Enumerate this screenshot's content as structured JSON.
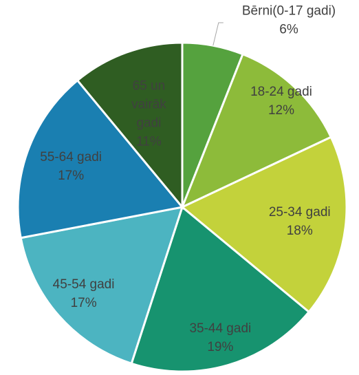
{
  "chart_data": {
    "type": "pie",
    "categories": [
      "Bērni(0-17 gadi)",
      "18-24 gadi",
      "25-34 gadi",
      "35-44 gadi",
      "45-54 gadi",
      "55-64 gadi",
      "65 un vairāk gadi"
    ],
    "values": [
      6,
      12,
      18,
      19,
      17,
      17,
      11
    ],
    "value_labels": [
      "6%",
      "12%",
      "18%",
      "19%",
      "17%",
      "17%",
      "11%"
    ],
    "colors": [
      "#55a23e",
      "#8dbb3a",
      "#c3d23b",
      "#17936f",
      "#4cb4c1",
      "#1a7fb1",
      "#2f5d22"
    ]
  }
}
